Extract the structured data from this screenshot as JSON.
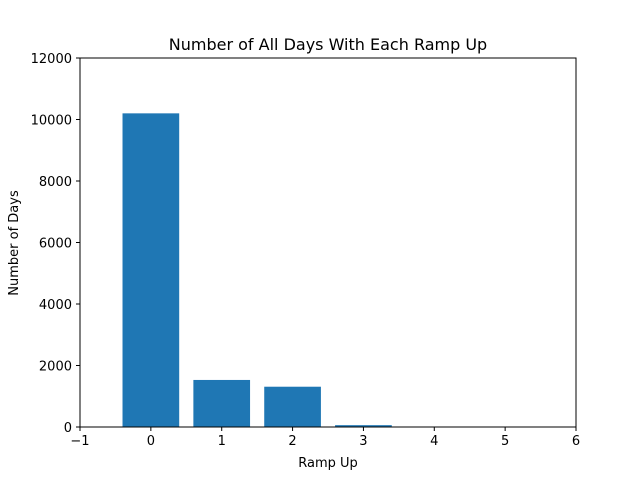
{
  "chart_data": {
    "type": "bar",
    "title": "Number of All Days With Each Ramp Up",
    "xlabel": "Ramp Up",
    "ylabel": "Number of Days",
    "x": [
      0,
      1,
      2,
      3
    ],
    "values": [
      10200,
      1530,
      1310,
      60
    ],
    "xlim": [
      -1,
      6
    ],
    "ylim": [
      0,
      12000
    ],
    "xticks": [
      "−1",
      "0",
      "1",
      "2",
      "3",
      "4",
      "5",
      "6"
    ],
    "yticks": [
      "0",
      "2000",
      "4000",
      "6000",
      "8000",
      "10000",
      "12000"
    ],
    "bar_color": "#1f77b4",
    "grid": false,
    "legend": "none"
  }
}
